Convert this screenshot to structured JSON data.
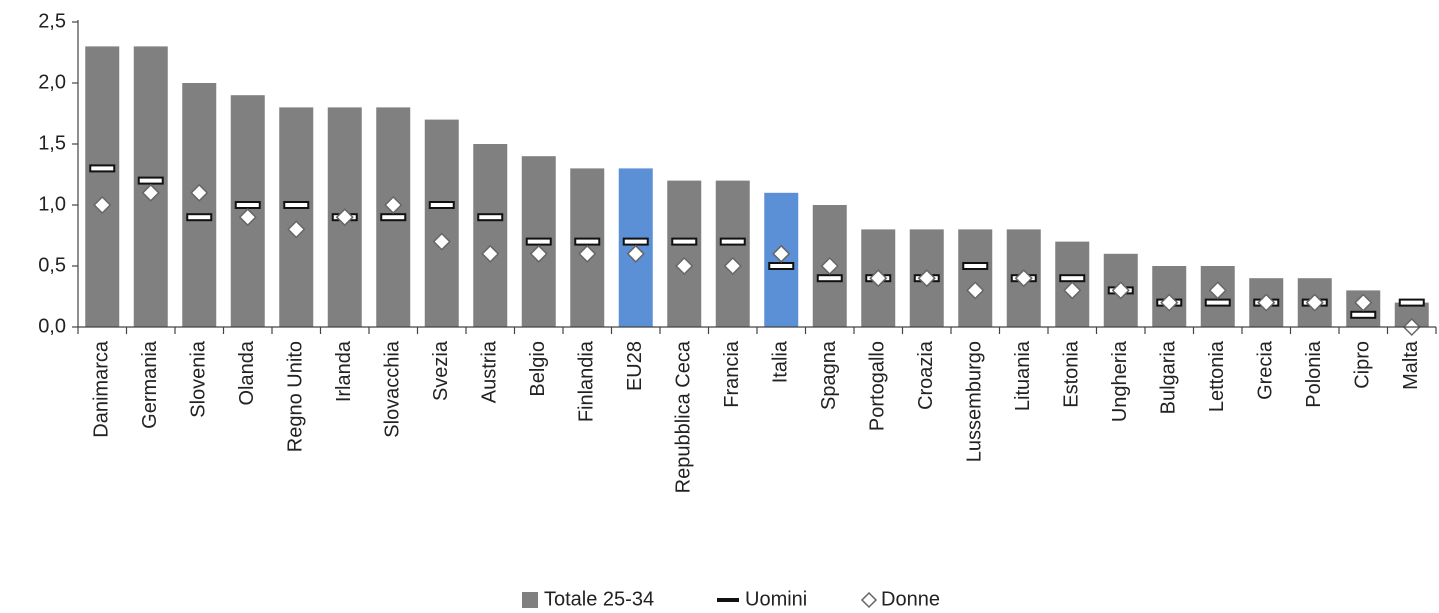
{
  "chart_data": {
    "type": "bar",
    "categories": [
      "Danimarca",
      "Germania",
      "Slovenia",
      "Olanda",
      "Regno Unito",
      "Irlanda",
      "Slovacchia",
      "Svezia",
      "Austria",
      "Belgio",
      "Finlandia",
      "EU28",
      "Repubblica Ceca",
      "Francia",
      "Italia",
      "Spagna",
      "Portogallo",
      "Croazia",
      "Lussemburgo",
      "Lituania",
      "Estonia",
      "Ungheria",
      "Bulgaria",
      "Lettonia",
      "Grecia",
      "Polonia",
      "Cipro",
      "Malta"
    ],
    "series": [
      {
        "name": "Totale 25-34",
        "color": "#808080",
        "highlight": [
          "EU28",
          "Italia"
        ],
        "highlight_color": "#5b8fd6",
        "values": [
          2.3,
          2.3,
          2.0,
          1.9,
          1.8,
          1.8,
          1.8,
          1.7,
          1.5,
          1.4,
          1.3,
          1.3,
          1.2,
          1.2,
          1.1,
          1.0,
          0.8,
          0.8,
          0.8,
          0.8,
          0.7,
          0.6,
          0.5,
          0.5,
          0.4,
          0.4,
          0.3,
          0.2
        ]
      },
      {
        "name": "Uomini",
        "color": "#111111",
        "values": [
          1.3,
          1.2,
          0.9,
          1.0,
          1.0,
          0.9,
          0.9,
          1.0,
          0.9,
          0.7,
          0.7,
          0.7,
          0.7,
          0.7,
          0.5,
          0.4,
          0.4,
          0.4,
          0.5,
          0.4,
          0.4,
          0.3,
          0.2,
          0.2,
          0.2,
          0.2,
          0.1,
          0.2
        ]
      },
      {
        "name": "Donne",
        "color": "#666666",
        "values": [
          1.0,
          1.1,
          1.1,
          0.9,
          0.8,
          0.9,
          1.0,
          0.7,
          0.6,
          0.6,
          0.6,
          0.6,
          0.5,
          0.5,
          0.6,
          0.5,
          0.4,
          0.4,
          0.3,
          0.4,
          0.3,
          0.3,
          0.2,
          0.3,
          0.2,
          0.2,
          0.2,
          0.0
        ]
      }
    ],
    "ylim": [
      0,
      2.5
    ],
    "yticks": [
      {
        "value": 0,
        "label": "0,0"
      },
      {
        "value": 0.5,
        "label": "0,5"
      },
      {
        "value": 1.0,
        "label": "1,0"
      },
      {
        "value": 1.5,
        "label": "1,5"
      },
      {
        "value": 2.0,
        "label": "2,0"
      },
      {
        "value": 2.5,
        "label": "2,5"
      }
    ],
    "legend": "bottom"
  }
}
